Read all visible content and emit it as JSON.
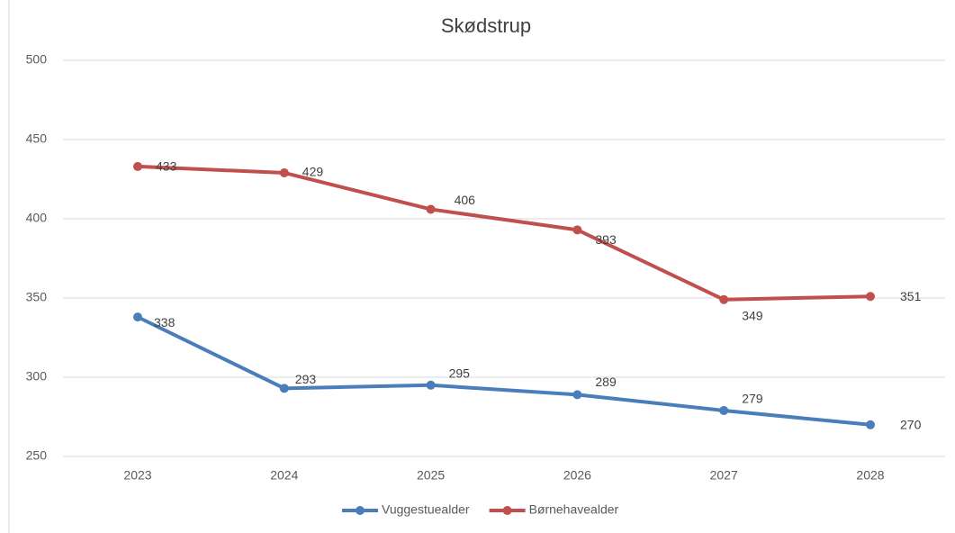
{
  "chart_data": {
    "type": "line",
    "title": "Skødstrup",
    "categories": [
      "2023",
      "2024",
      "2025",
      "2026",
      "2027",
      "2028"
    ],
    "series": [
      {
        "name": "Vuggestuealder",
        "color": "#4a7ebb",
        "values": [
          338,
          293,
          295,
          289,
          279,
          270
        ]
      },
      {
        "name": "Børnehavealder",
        "color": "#c0504d",
        "values": [
          433,
          429,
          406,
          393,
          349,
          351
        ]
      }
    ],
    "ylim": [
      250,
      500
    ],
    "yticks": [
      250,
      300,
      350,
      400,
      450,
      500
    ],
    "grid": true,
    "legend": "bottom"
  }
}
